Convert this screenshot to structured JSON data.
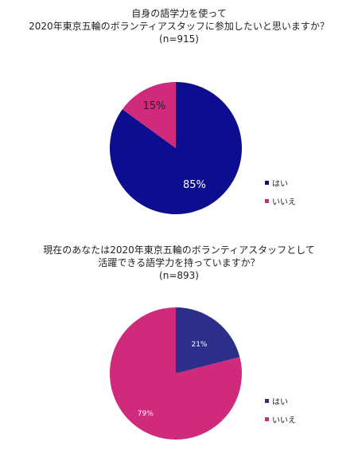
{
  "colors": {
    "yes": "#0d0d8f",
    "no": "#d02a7c",
    "yes_q2": "#2b2f8a"
  },
  "chart_data": [
    {
      "type": "pie",
      "title": [
        "自身の語学力を使って",
        "2020年東京五輪のボランティアスタッフに参加したいと思いますか？",
        "(n=915)"
      ],
      "categories": [
        "はい",
        "いいえ"
      ],
      "values": [
        85,
        15
      ],
      "value_labels": [
        "85%",
        "15%"
      ],
      "legend_position": "right"
    },
    {
      "type": "pie",
      "title": [
        "現在のあなたは2020年東京五輪のボランティアスタッフとして",
        "活躍できる語学力を持っていますか？",
        "(n=893)"
      ],
      "categories": [
        "はい",
        "いいえ"
      ],
      "values": [
        21,
        79
      ],
      "value_labels": [
        "21%",
        "79%"
      ],
      "legend_position": "right"
    }
  ]
}
